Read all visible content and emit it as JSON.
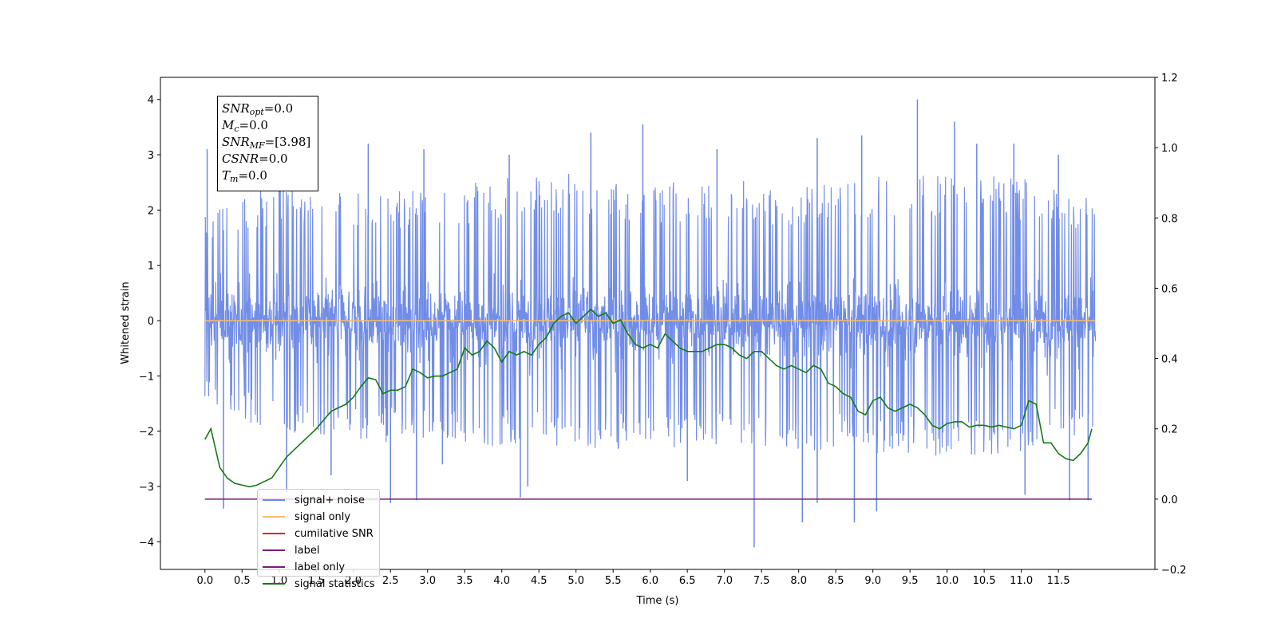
{
  "chart_data": {
    "type": "line",
    "xlabel": "Time (s)",
    "ylabel": "Whitened strain",
    "xlim": [
      -0.6,
      12.8
    ],
    "ylim": [
      -4.5,
      4.4
    ],
    "y2lim": [
      -0.2,
      1.2
    ],
    "x_ticks": [
      "0.0",
      "0.5",
      "1.0",
      "1.5",
      "2.0",
      "2.5",
      "3.0",
      "3.5",
      "4.0",
      "4.5",
      "5.0",
      "5.5",
      "6.0",
      "6.5",
      "7.0",
      "7.5",
      "8.0",
      "8.5",
      "9.0",
      "9.5",
      "10.0",
      "10.5",
      "11.0",
      "11.5"
    ],
    "y_ticks": [
      "4",
      "3",
      "2",
      "1",
      "0",
      "−1",
      "−2",
      "−3",
      "−4"
    ],
    "y2_ticks": [
      "1.2",
      "1.0",
      "0.8",
      "0.6",
      "0.4",
      "0.2",
      "0.0",
      "−0.2"
    ],
    "grid": false,
    "legend_position": "lower-left",
    "series": [
      {
        "name": "signal+ noise",
        "axis": "left",
        "color": "#6a87e6",
        "style": "dense noise",
        "x_range": [
          0.0,
          12.0
        ],
        "mean": 0.0,
        "std": 0.8,
        "envelope_upper": [
          [
            0.0,
            2.0
          ],
          [
            1.0,
            2.5
          ],
          [
            2.0,
            2.3
          ],
          [
            3.0,
            2.4
          ],
          [
            4.0,
            2.6
          ],
          [
            5.0,
            2.7
          ],
          [
            6.0,
            2.5
          ],
          [
            7.0,
            2.6
          ],
          [
            8.0,
            2.4
          ],
          [
            9.0,
            2.6
          ],
          [
            10.0,
            2.7
          ],
          [
            11.0,
            2.6
          ],
          [
            12.0,
            2.2
          ]
        ],
        "envelope_lower": [
          [
            0.0,
            -1.5
          ],
          [
            1.0,
            -2.1
          ],
          [
            2.0,
            -2.2
          ],
          [
            3.0,
            -2.3
          ],
          [
            4.0,
            -2.3
          ],
          [
            5.0,
            -2.3
          ],
          [
            6.0,
            -2.4
          ],
          [
            7.0,
            -2.3
          ],
          [
            8.0,
            -2.4
          ],
          [
            9.0,
            -2.4
          ],
          [
            10.0,
            -2.5
          ],
          [
            11.0,
            -2.4
          ],
          [
            12.0,
            -2.0
          ]
        ],
        "peaks_up": [
          [
            0.03,
            3.1
          ],
          [
            1.0,
            3.0
          ],
          [
            2.2,
            3.2
          ],
          [
            2.95,
            3.1
          ],
          [
            4.1,
            3.0
          ],
          [
            5.2,
            3.4
          ],
          [
            5.9,
            3.55
          ],
          [
            6.9,
            3.1
          ],
          [
            8.25,
            3.3
          ],
          [
            8.85,
            3.35
          ],
          [
            9.6,
            4.0
          ],
          [
            10.1,
            3.6
          ],
          [
            10.4,
            3.2
          ],
          [
            10.9,
            3.2
          ],
          [
            11.5,
            3.0
          ]
        ],
        "peaks_down": [
          [
            0.25,
            -3.4
          ],
          [
            1.1,
            -3.1
          ],
          [
            1.7,
            -2.8
          ],
          [
            2.5,
            -3.3
          ],
          [
            2.85,
            -3.25
          ],
          [
            3.2,
            -2.6
          ],
          [
            4.25,
            -3.2
          ],
          [
            4.35,
            -3.0
          ],
          [
            6.5,
            -2.9
          ],
          [
            7.4,
            -4.1
          ],
          [
            8.05,
            -3.65
          ],
          [
            8.25,
            -3.3
          ],
          [
            8.75,
            -3.65
          ],
          [
            9.05,
            -3.45
          ],
          [
            11.05,
            -3.15
          ],
          [
            11.65,
            -3.25
          ],
          [
            11.9,
            -3.25
          ]
        ]
      },
      {
        "name": "signal only",
        "axis": "left",
        "color": "#f5be6a",
        "x": [
          0.0,
          12.0
        ],
        "y": [
          0.0,
          0.0
        ]
      },
      {
        "name": "cumilative SNR",
        "axis": "right",
        "color": "#e02020",
        "x": [],
        "y": []
      },
      {
        "name": "label",
        "axis": "right",
        "color": "#7b1a7b",
        "x": [
          0.0,
          11.95
        ],
        "y": [
          0.0,
          0.0
        ]
      },
      {
        "name": "label only",
        "axis": "right",
        "color": "#7b1a7b",
        "x": [],
        "y": []
      },
      {
        "name": "signal statistics",
        "axis": "right",
        "color": "#137a13",
        "x": [
          0.0,
          0.08,
          0.2,
          0.3,
          0.4,
          0.5,
          0.6,
          0.7,
          0.8,
          0.9,
          1.0,
          1.1,
          1.2,
          1.3,
          1.4,
          1.5,
          1.6,
          1.7,
          1.8,
          1.9,
          2.0,
          2.1,
          2.2,
          2.3,
          2.4,
          2.5,
          2.6,
          2.7,
          2.8,
          2.9,
          3.0,
          3.1,
          3.2,
          3.3,
          3.4,
          3.5,
          3.6,
          3.7,
          3.8,
          3.9,
          4.0,
          4.1,
          4.2,
          4.3,
          4.4,
          4.5,
          4.6,
          4.7,
          4.8,
          4.9,
          5.0,
          5.1,
          5.2,
          5.3,
          5.4,
          5.5,
          5.6,
          5.7,
          5.8,
          5.9,
          6.0,
          6.1,
          6.2,
          6.3,
          6.4,
          6.5,
          6.6,
          6.7,
          6.8,
          6.9,
          7.0,
          7.1,
          7.2,
          7.3,
          7.4,
          7.5,
          7.6,
          7.7,
          7.8,
          7.9,
          8.0,
          8.1,
          8.2,
          8.3,
          8.4,
          8.5,
          8.6,
          8.7,
          8.8,
          8.9,
          9.0,
          9.1,
          9.2,
          9.3,
          9.4,
          9.5,
          9.6,
          9.7,
          9.8,
          9.9,
          10.0,
          10.1,
          10.2,
          10.3,
          10.4,
          10.5,
          10.6,
          10.7,
          10.8,
          10.9,
          11.0,
          11.1,
          11.2,
          11.3,
          11.4,
          11.5,
          11.6,
          11.7,
          11.8,
          11.9,
          11.95
        ],
        "y": [
          0.17,
          0.2,
          0.09,
          0.06,
          0.045,
          0.04,
          0.035,
          0.04,
          0.05,
          0.06,
          0.09,
          0.12,
          0.14,
          0.16,
          0.18,
          0.2,
          0.225,
          0.25,
          0.26,
          0.27,
          0.29,
          0.32,
          0.345,
          0.34,
          0.3,
          0.31,
          0.31,
          0.32,
          0.37,
          0.36,
          0.345,
          0.35,
          0.35,
          0.36,
          0.37,
          0.43,
          0.41,
          0.42,
          0.45,
          0.43,
          0.39,
          0.42,
          0.41,
          0.42,
          0.41,
          0.44,
          0.46,
          0.5,
          0.52,
          0.53,
          0.5,
          0.52,
          0.54,
          0.52,
          0.53,
          0.5,
          0.51,
          0.47,
          0.44,
          0.43,
          0.44,
          0.43,
          0.47,
          0.45,
          0.43,
          0.42,
          0.42,
          0.42,
          0.43,
          0.44,
          0.44,
          0.43,
          0.41,
          0.4,
          0.42,
          0.42,
          0.4,
          0.38,
          0.37,
          0.38,
          0.37,
          0.36,
          0.38,
          0.37,
          0.33,
          0.32,
          0.3,
          0.29,
          0.25,
          0.24,
          0.28,
          0.29,
          0.26,
          0.25,
          0.26,
          0.27,
          0.26,
          0.24,
          0.21,
          0.2,
          0.215,
          0.22,
          0.22,
          0.205,
          0.21,
          0.21,
          0.205,
          0.21,
          0.205,
          0.2,
          0.21,
          0.28,
          0.27,
          0.16,
          0.16,
          0.13,
          0.115,
          0.11,
          0.13,
          0.16,
          0.2
        ]
      }
    ]
  },
  "stats_box": {
    "snr_opt_label": "SNR",
    "snr_opt_sub": "opt",
    "snr_opt_value": "=0.0",
    "mc_label": "M",
    "mc_sub": "c",
    "mc_value": "=0.0",
    "snr_mf_label": "SNR",
    "snr_mf_sub": "MF",
    "snr_mf_value": "=[3.98]",
    "csnr_label": "CSNR",
    "csnr_value": "=0.0",
    "tm_label": "T",
    "tm_sub": "m",
    "tm_value": "=0.0"
  }
}
